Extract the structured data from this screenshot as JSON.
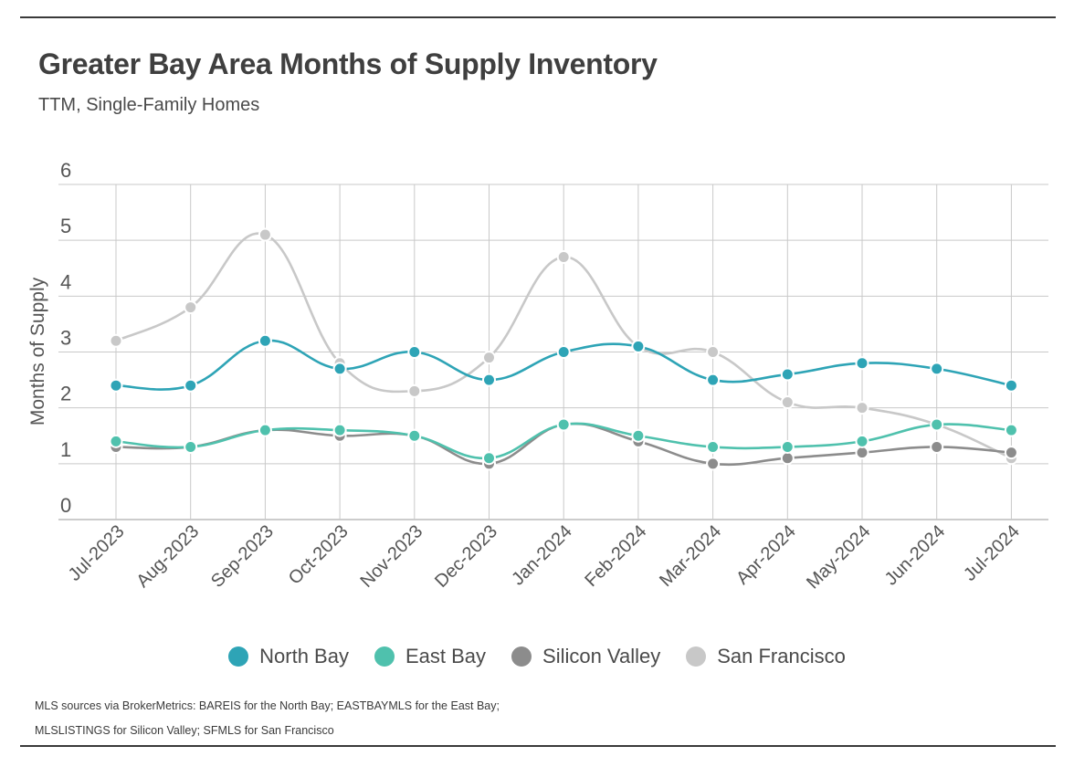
{
  "header": {
    "title": "Greater Bay Area Months of Supply Inventory",
    "subtitle": "TTM, Single-Family Homes"
  },
  "source_note": "MLS sources via BrokerMetrics: BAREIS for the North Bay; EASTBAYMLS for the East Bay; MLSLISTINGS for Silicon Valley; SFMLS for San Francisco",
  "chart_data": {
    "type": "line",
    "title": "Greater Bay Area Months of Supply Inventory",
    "subtitle": "TTM, Single-Family Homes",
    "xlabel": "",
    "ylabel": "Months of Supply",
    "ylim": [
      0,
      6
    ],
    "yticks": [
      0,
      1,
      2,
      3,
      4,
      5,
      6
    ],
    "grid": true,
    "legend_position": "bottom",
    "categories": [
      "Jul-2023",
      "Aug-2023",
      "Sep-2023",
      "Oct-2023",
      "Nov-2023",
      "Dec-2023",
      "Jan-2024",
      "Feb-2024",
      "Mar-2024",
      "Apr-2024",
      "May-2024",
      "Jun-2024",
      "Jul-2024"
    ],
    "series": [
      {
        "name": "San Francisco",
        "color": "#c8c8c8",
        "values": [
          3.2,
          3.8,
          5.1,
          2.8,
          2.3,
          2.9,
          4.7,
          3.1,
          3.0,
          2.1,
          2.0,
          1.7,
          1.1
        ]
      },
      {
        "name": "Silicon Valley",
        "color": "#8c8c8c",
        "values": [
          1.3,
          1.3,
          1.6,
          1.5,
          1.5,
          1.0,
          1.7,
          1.4,
          1.0,
          1.1,
          1.2,
          1.3,
          1.2
        ]
      },
      {
        "name": "East Bay",
        "color": "#4fc1ad",
        "values": [
          1.4,
          1.3,
          1.6,
          1.6,
          1.5,
          1.1,
          1.7,
          1.5,
          1.3,
          1.3,
          1.4,
          1.7,
          1.6
        ]
      },
      {
        "name": "North Bay",
        "color": "#2ea4b6",
        "values": [
          2.4,
          2.4,
          3.2,
          2.7,
          3.0,
          2.5,
          3.0,
          3.1,
          2.5,
          2.6,
          2.8,
          2.7,
          2.4
        ]
      }
    ],
    "legend": [
      "North Bay",
      "East Bay",
      "Silicon Valley",
      "San Francisco"
    ]
  }
}
